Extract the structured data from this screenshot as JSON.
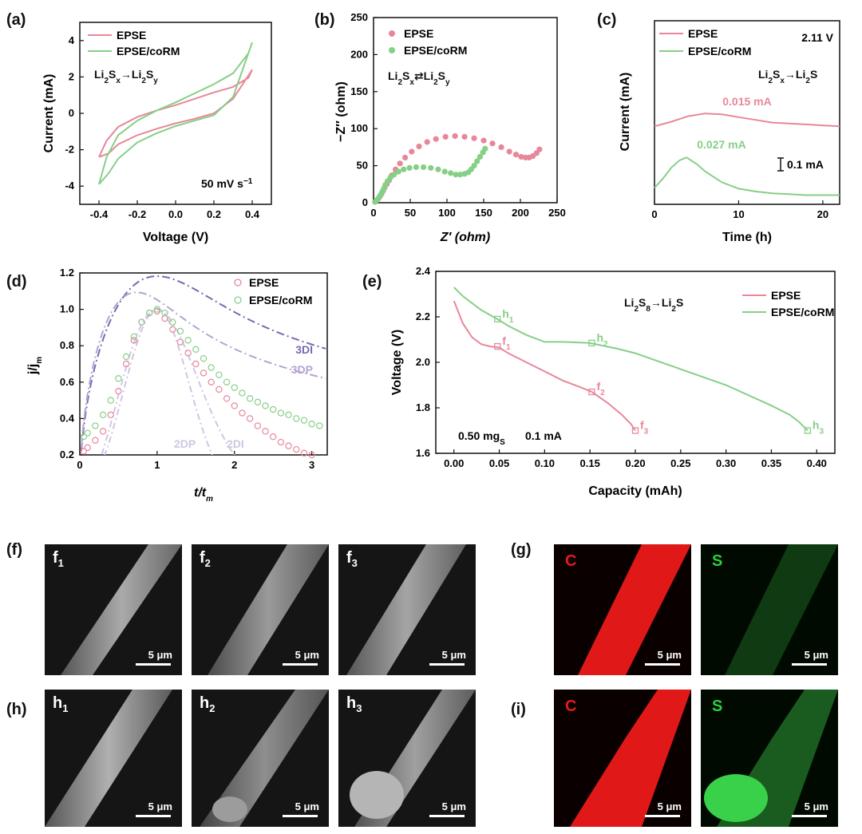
{
  "panels": {
    "a": "(a)",
    "b": "(b)",
    "c": "(c)",
    "d": "(d)",
    "e": "(e)",
    "f": "(f)",
    "g": "(g)",
    "h": "(h)",
    "i": "(i)"
  },
  "colors": {
    "epse": "#e8879a",
    "corm": "#86cf86",
    "3di": "#7b68b0",
    "3dp": "#b4a4d3",
    "2d": "#cfc6e2",
    "c_map": "#ff1a1a",
    "s_map": "#2ecc40"
  },
  "chart_data": [
    {
      "id": "a",
      "type": "line",
      "xlabel": "Voltage (V)",
      "ylabel": "Current (mA)",
      "xlim": [
        -0.5,
        0.5
      ],
      "ylim": [
        -5,
        5
      ],
      "xticks": [
        -0.4,
        -0.2,
        0.0,
        0.2,
        0.4
      ],
      "xticklabels": [
        "-0.4",
        "-0.2",
        "0.0",
        "0.2",
        "0.4"
      ],
      "yticks": [
        -4,
        -2,
        0,
        2,
        4
      ],
      "yticklabels": [
        "-4",
        "-2",
        "0",
        "2",
        "4"
      ],
      "annotation_reaction": {
        "lhs_base": "Li",
        "lhs_sub1": "2",
        "lhs_mid": "S",
        "lhs_sub2": "x",
        "arrow": "→",
        "rhs_base": "Li",
        "rhs_sub1": "2",
        "rhs_mid": "S",
        "rhs_sub2": "y"
      },
      "annotation_rate": "50 mV s",
      "annotation_rate_sup": "−1",
      "series": [
        {
          "name": "EPSE",
          "x": [
            -0.4,
            -0.35,
            -0.3,
            -0.2,
            -0.1,
            0.0,
            0.1,
            0.2,
            0.3,
            0.4,
            0.38,
            0.3,
            0.2,
            0.1,
            0.0,
            -0.1,
            -0.2,
            -0.3,
            -0.36,
            -0.4
          ],
          "y": [
            -2.4,
            -2.2,
            -1.7,
            -1.2,
            -0.85,
            -0.55,
            -0.3,
            0.0,
            0.8,
            2.4,
            1.95,
            1.45,
            1.15,
            0.8,
            0.45,
            0.15,
            -0.2,
            -0.75,
            -1.5,
            -2.4
          ]
        },
        {
          "name": "EPSE/coRM",
          "x": [
            -0.4,
            -0.35,
            -0.3,
            -0.2,
            -0.1,
            0.0,
            0.1,
            0.2,
            0.3,
            0.4,
            0.38,
            0.3,
            0.2,
            0.1,
            0.0,
            -0.1,
            -0.2,
            -0.3,
            -0.36,
            -0.4
          ],
          "y": [
            -3.9,
            -3.3,
            -2.5,
            -1.6,
            -1.1,
            -0.7,
            -0.4,
            -0.1,
            0.9,
            3.9,
            3.3,
            2.2,
            1.6,
            1.1,
            0.6,
            0.15,
            -0.4,
            -1.2,
            -2.4,
            -3.9
          ]
        }
      ]
    },
    {
      "id": "b",
      "type": "scatter",
      "xlabel": "Z′ (ohm)",
      "ylabel": "−Z″ (ohm)",
      "xlim": [
        0,
        250
      ],
      "ylim": [
        0,
        250
      ],
      "xticks": [
        0,
        50,
        100,
        150,
        200,
        250
      ],
      "xticklabels": [
        "0",
        "50",
        "100",
        "150",
        "200",
        "250"
      ],
      "yticks": [
        0,
        50,
        100,
        150,
        200,
        250
      ],
      "yticklabels": [
        "0",
        "50",
        "100",
        "150",
        "200",
        "250"
      ],
      "annotation_reaction": {
        "lhs_base": "Li",
        "lhs_sub1": "2",
        "lhs_mid": "S",
        "lhs_sub2": "x",
        "arrow": "⇄",
        "rhs_base": "Li",
        "rhs_sub1": "2",
        "rhs_mid": "S",
        "rhs_sub2": "y"
      },
      "series": [
        {
          "name": "EPSE",
          "x": [
            3,
            5,
            7,
            9,
            11,
            13,
            15,
            18,
            21,
            25,
            30,
            36,
            43,
            52,
            62,
            73,
            85,
            98,
            111,
            124,
            137,
            150,
            162,
            174,
            185,
            194,
            201,
            207,
            212,
            217,
            222,
            226
          ],
          "y": [
            2,
            4,
            6,
            9,
            12,
            16,
            20,
            25,
            30,
            37,
            45,
            53,
            61,
            69,
            76,
            82,
            86,
            89,
            90,
            89,
            87,
            84,
            80,
            75,
            69,
            65,
            62,
            61,
            61,
            63,
            67,
            72
          ]
        },
        {
          "name": "EPSE/coRM",
          "x": [
            2,
            4,
            6,
            8,
            10,
            12,
            14,
            16,
            19,
            23,
            28,
            34,
            41,
            49,
            58,
            68,
            78,
            88,
            97,
            105,
            112,
            118,
            124,
            129,
            133,
            137,
            141,
            145,
            149,
            152
          ],
          "y": [
            1,
            3,
            5,
            8,
            11,
            15,
            19,
            24,
            29,
            34,
            38,
            42,
            45,
            47,
            48,
            48,
            47,
            45,
            42,
            40,
            38,
            38,
            39,
            41,
            45,
            50,
            56,
            62,
            68,
            73
          ]
        }
      ]
    },
    {
      "id": "c",
      "type": "line",
      "xlabel": "Time (h)",
      "ylabel": "Current (mA)",
      "xlim": [
        0,
        22
      ],
      "ylim": [
        0,
        1
      ],
      "xticks": [
        0,
        10,
        20
      ],
      "xticklabels": [
        "0",
        "10",
        "20"
      ],
      "yticks": [],
      "yticklabels": [],
      "annotation_voltage": "2.11 V",
      "annotation_reaction": {
        "lhs_base": "Li",
        "lhs_sub1": "2",
        "lhs_mid": "S",
        "lhs_sub2": "x",
        "arrow": "→",
        "rhs_base": "Li",
        "rhs_sub1": "2",
        "rhs_mid": "S",
        "rhs_sub2": ""
      },
      "annotation_epse": "0.015 mA",
      "annotation_corm": "0.027 mA",
      "annotation_scale": "0.1 mA",
      "series": [
        {
          "name": "EPSE",
          "x": [
            0,
            2,
            4,
            6,
            8,
            10,
            12,
            14,
            16,
            18,
            20,
            22
          ],
          "y": [
            0.425,
            0.45,
            0.48,
            0.495,
            0.49,
            0.475,
            0.46,
            0.445,
            0.44,
            0.435,
            0.43,
            0.425
          ]
        },
        {
          "name": "EPSE/coRM",
          "x": [
            0,
            1,
            2,
            3,
            3.8,
            5,
            6,
            8,
            10,
            12,
            14,
            16,
            18,
            20,
            22
          ],
          "y": [
            0.09,
            0.14,
            0.2,
            0.24,
            0.255,
            0.22,
            0.18,
            0.12,
            0.085,
            0.07,
            0.06,
            0.055,
            0.05,
            0.05,
            0.05
          ]
        }
      ]
    },
    {
      "id": "d",
      "type": "scatter",
      "xlabel": "t/t",
      "xlabel_sub": "m",
      "ylabel": "j/j",
      "ylabel_sub": "m",
      "xlim": [
        0,
        3.2
      ],
      "ylim": [
        0.2,
        1.2
      ],
      "xticks": [
        0,
        1,
        2,
        3
      ],
      "xticklabels": [
        "0",
        "1",
        "2",
        "3"
      ],
      "yticks": [
        0.2,
        0.4,
        0.6,
        0.8,
        1.0,
        1.2
      ],
      "yticklabels": [
        "0.2",
        "0.4",
        "0.6",
        "0.8",
        "1.0",
        "1.2"
      ],
      "model_labels": [
        "3DI",
        "3DP",
        "2DP",
        "2DI"
      ],
      "series": [
        {
          "name": "EPSE",
          "x": [
            0.05,
            0.1,
            0.2,
            0.3,
            0.4,
            0.5,
            0.6,
            0.7,
            0.8,
            0.9,
            1.0,
            1.1,
            1.2,
            1.3,
            1.4,
            1.5,
            1.6,
            1.7,
            1.8,
            1.9,
            2.0,
            2.1,
            2.2,
            2.3,
            2.4,
            2.5,
            2.6,
            2.7,
            2.8,
            2.9,
            3.0
          ],
          "y": [
            0.22,
            0.24,
            0.28,
            0.33,
            0.42,
            0.55,
            0.7,
            0.83,
            0.93,
            0.98,
            0.99,
            0.95,
            0.89,
            0.82,
            0.76,
            0.7,
            0.65,
            0.6,
            0.56,
            0.51,
            0.47,
            0.43,
            0.4,
            0.36,
            0.33,
            0.3,
            0.27,
            0.25,
            0.23,
            0.21,
            0.2
          ]
        },
        {
          "name": "EPSE/coRM",
          "x": [
            0.05,
            0.1,
            0.2,
            0.3,
            0.4,
            0.5,
            0.6,
            0.7,
            0.8,
            0.9,
            1.0,
            1.1,
            1.2,
            1.3,
            1.4,
            1.5,
            1.6,
            1.7,
            1.8,
            1.9,
            2.0,
            2.1,
            2.2,
            2.3,
            2.4,
            2.5,
            2.6,
            2.7,
            2.8,
            2.9,
            3.0,
            3.1
          ],
          "y": [
            0.3,
            0.32,
            0.36,
            0.42,
            0.5,
            0.62,
            0.74,
            0.85,
            0.93,
            0.98,
            1.0,
            0.98,
            0.93,
            0.88,
            0.83,
            0.78,
            0.73,
            0.68,
            0.64,
            0.6,
            0.57,
            0.54,
            0.51,
            0.49,
            0.47,
            0.45,
            0.43,
            0.42,
            0.4,
            0.39,
            0.37,
            0.36
          ]
        }
      ]
    },
    {
      "id": "e",
      "type": "line",
      "xlabel": "Capacity (mAh)",
      "ylabel": "Voltage (V)",
      "xlim": [
        -0.02,
        0.42
      ],
      "ylim": [
        1.6,
        2.4
      ],
      "xticks": [
        0.0,
        0.05,
        0.1,
        0.15,
        0.2,
        0.25,
        0.3,
        0.35,
        0.4
      ],
      "xticklabels": [
        "0.00",
        "0.05",
        "0.10",
        "0.15",
        "0.20",
        "0.25",
        "0.30",
        "0.35",
        "0.40"
      ],
      "yticks": [
        1.6,
        1.8,
        2.0,
        2.2,
        2.4
      ],
      "yticklabels": [
        "1.6",
        "1.8",
        "2.0",
        "2.2",
        "2.4"
      ],
      "annotation_reaction": {
        "lhs_base": "Li",
        "lhs_sub1": "2",
        "lhs_mid": "S",
        "lhs_sub2": "8",
        "arrow": "→",
        "rhs_base": "Li",
        "rhs_sub1": "2",
        "rhs_mid": "S",
        "rhs_sub2": ""
      },
      "annotation_loading": "0.50 mg",
      "annotation_loading_sub": "S",
      "annotation_current": "0.1 mA",
      "points_epse": [
        {
          "label": "f",
          "sub": "1",
          "x": 0.048,
          "y": 2.07
        },
        {
          "label": "f",
          "sub": "2",
          "x": 0.152,
          "y": 1.87
        },
        {
          "label": "f",
          "sub": "3",
          "x": 0.2,
          "y": 1.7
        }
      ],
      "points_corm": [
        {
          "label": "h",
          "sub": "1",
          "x": 0.048,
          "y": 2.19
        },
        {
          "label": "h",
          "sub": "2",
          "x": 0.152,
          "y": 2.085
        },
        {
          "label": "h",
          "sub": "3",
          "x": 0.39,
          "y": 1.7
        }
      ],
      "series": [
        {
          "name": "EPSE",
          "x": [
            0.0,
            0.005,
            0.01,
            0.02,
            0.03,
            0.04,
            0.05,
            0.06,
            0.08,
            0.1,
            0.12,
            0.14,
            0.152,
            0.17,
            0.185,
            0.195,
            0.2
          ],
          "y": [
            2.27,
            2.22,
            2.17,
            2.11,
            2.08,
            2.07,
            2.065,
            2.04,
            2.0,
            1.96,
            1.92,
            1.89,
            1.87,
            1.82,
            1.77,
            1.73,
            1.7
          ]
        },
        {
          "name": "EPSE/coRM",
          "x": [
            0.0,
            0.01,
            0.02,
            0.03,
            0.048,
            0.06,
            0.08,
            0.1,
            0.12,
            0.15,
            0.18,
            0.2,
            0.25,
            0.3,
            0.35,
            0.37,
            0.38,
            0.39
          ],
          "y": [
            2.33,
            2.29,
            2.26,
            2.23,
            2.19,
            2.16,
            2.12,
            2.09,
            2.09,
            2.085,
            2.06,
            2.04,
            1.97,
            1.9,
            1.81,
            1.77,
            1.74,
            1.7
          ]
        }
      ]
    }
  ],
  "sem_images": [
    {
      "label": "f",
      "sub": "1",
      "scale": "5 μm"
    },
    {
      "label": "f",
      "sub": "2",
      "scale": "5 μm"
    },
    {
      "label": "f",
      "sub": "3",
      "scale": "5 μm"
    },
    {
      "label": "h",
      "sub": "1",
      "scale": "5 μm"
    },
    {
      "label": "h",
      "sub": "2",
      "scale": "5 μm"
    },
    {
      "label": "h",
      "sub": "3",
      "scale": "5 μm"
    }
  ],
  "maps": [
    {
      "element": "C",
      "scale": "5 μm"
    },
    {
      "element": "S",
      "scale": "5 μm"
    },
    {
      "element": "C",
      "scale": "5 μm"
    },
    {
      "element": "S",
      "scale": "5 μm"
    }
  ]
}
